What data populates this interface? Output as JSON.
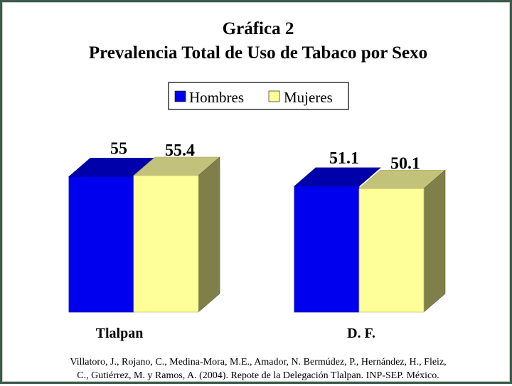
{
  "chart_data": {
    "type": "bar",
    "style": "3d-clustered",
    "title": "Gráfica 2",
    "subtitle": "Prevalencia Total de Uso de Tabaco por Sexo",
    "categories": [
      "Tlalpan",
      "D. F."
    ],
    "series": [
      {
        "name": "Hombres",
        "values": [
          55,
          51.1
        ],
        "labels": [
          "55",
          "51.1"
        ],
        "color": "#0000ee"
      },
      {
        "name": "Mujeres",
        "values": [
          55.4,
          50.1
        ],
        "labels": [
          "55.4",
          "50.1"
        ],
        "color": "#ffff99"
      }
    ],
    "legend_position": "top-center",
    "grid": false,
    "axes_visible": false,
    "ylim": [
      0,
      55.4
    ]
  },
  "source": {
    "line1": "Villatoro, J., Rojano, C., Medina-Mora, M.E., Amador, N. Bermúdez, P., Hernández, H., Fleiz,",
    "line2": "C., Gutiérrez, M. y Ramos, A. (2004). Repote de la Delegación Tlalpan. INP-SEP. México."
  }
}
